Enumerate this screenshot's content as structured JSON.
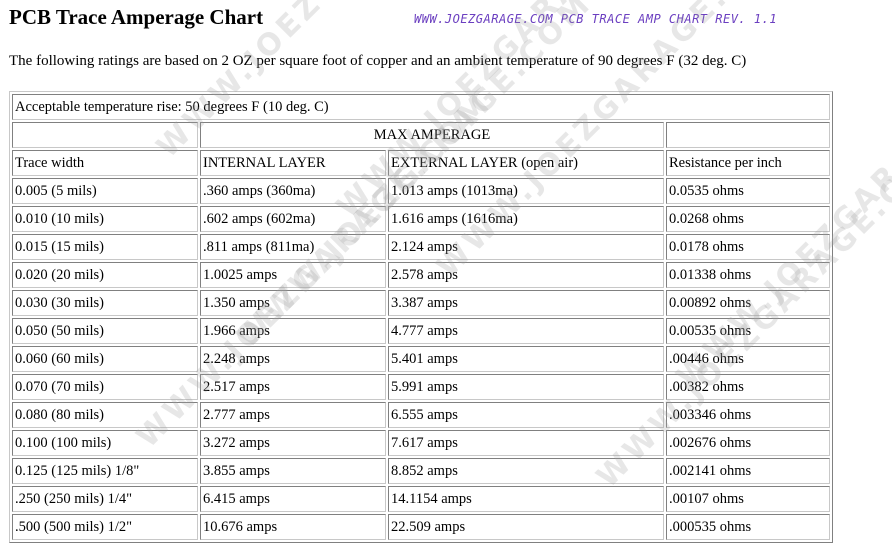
{
  "header": {
    "title": "PCB Trace Amperage Chart",
    "site_label": "WWW.JOEZGARAGE.COM  PCB TRACE AMP CHART REV. 1.1",
    "intro": "The following ratings are based on 2 OZ per square foot of copper and an ambient temperature of  90 degrees F (32 deg. C)"
  },
  "watermark": "WWW.JOEZGARAGE.COM",
  "table": {
    "temp_rise": "Acceptable temperature rise:  50 degrees F  (10 deg. C)",
    "group_header": "MAX AMPERAGE",
    "columns": [
      "Trace width",
      "INTERNAL LAYER",
      "EXTERNAL LAYER (open air)",
      "Resistance per inch"
    ],
    "rows": [
      [
        "0.005  (5 mils)",
        ".360 amps (360ma)",
        "1.013 amps (1013ma)",
        "0.0535 ohms"
      ],
      [
        "0.010  (10 mils)",
        ".602 amps (602ma)",
        "1.616 amps (1616ma)",
        "0.0268 ohms"
      ],
      [
        "0.015 (15 mils)",
        ".811 amps (811ma)",
        "2.124 amps",
        "0.0178 ohms"
      ],
      [
        "0.020 (20 mils)",
        "1.0025 amps",
        "2.578 amps",
        "0.01338 ohms"
      ],
      [
        "0.030 (30 mils)",
        "1.350 amps",
        "3.387 amps",
        "0.00892 ohms"
      ],
      [
        "0.050 (50 mils)",
        "1.966 amps",
        "4.777 amps",
        "0.00535 ohms"
      ],
      [
        "0.060 (60 mils)",
        "2.248 amps",
        "5.401 amps",
        ".00446 ohms"
      ],
      [
        "0.070 (70 mils)",
        "2.517 amps",
        "5.991 amps",
        ".00382 ohms"
      ],
      [
        "0.080 (80 mils)",
        "2.777 amps",
        "6.555 amps",
        ".003346 ohms"
      ],
      [
        "0.100 (100 mils)",
        "3.272 amps",
        "7.617 amps",
        ".002676   ohms"
      ],
      [
        "0.125 (125 mils) 1/8\"",
        "3.855 amps",
        "8.852 amps",
        ".002141 ohms"
      ],
      [
        ".250 (250 mils) 1/4\"",
        "6.415 amps",
        "14.1154 amps",
        ".00107 ohms"
      ],
      [
        ".500 (500 mils) 1/2\"",
        "10.676 amps",
        "22.509 amps",
        ".000535 ohms"
      ]
    ]
  }
}
